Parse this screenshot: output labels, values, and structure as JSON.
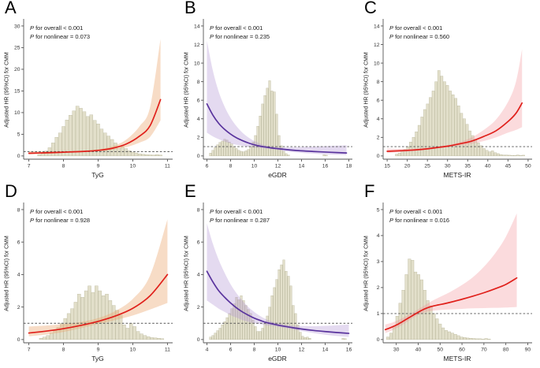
{
  "figure": {
    "background": "#ffffff"
  },
  "chart_data": [
    {
      "type": "line",
      "label": "A",
      "p_overall": "P for overall < 0.001",
      "p_nonlinear": "P for nonlinear = 0.073",
      "xlabel": "TyG",
      "ylabel": "Adjusted HR (95%CI) for CMM",
      "xlim": [
        6.85,
        11.15
      ],
      "ylim": [
        0,
        30
      ],
      "xticks": [
        7,
        8,
        9,
        10,
        11
      ],
      "yticks": [
        0,
        5,
        10,
        15,
        20,
        25,
        30
      ],
      "ref_line_y": 1,
      "legend_position": "none",
      "grid": false,
      "colors": {
        "line": "#e0201b",
        "band": "#eba770",
        "band_opacity": 0.4,
        "hist_fill": "#e2dfca",
        "hist_stroke": "#b5b295"
      },
      "curve": {
        "x": [
          7.0,
          7.4,
          7.8,
          8.2,
          8.6,
          9.0,
          9.4,
          9.8,
          10.2,
          10.5,
          10.8
        ],
        "y": [
          0.62,
          0.7,
          0.8,
          0.92,
          1.05,
          1.28,
          1.75,
          2.7,
          4.6,
          7.0,
          13.0
        ],
        "lo": [
          0.33,
          0.45,
          0.6,
          0.76,
          0.9,
          1.08,
          1.42,
          2.0,
          3.1,
          4.4,
          8.2
        ],
        "hi": [
          1.1,
          1.06,
          1.06,
          1.12,
          1.24,
          1.52,
          2.2,
          3.7,
          6.9,
          11.3,
          27.0
        ]
      },
      "histogram": {
        "x0": 7.25,
        "bin_width": 0.1,
        "heights": [
          0.3,
          0.6,
          1.1,
          1.9,
          3.0,
          4.3,
          5.3,
          6.8,
          8.3,
          9.4,
          10.4,
          11.5,
          11.0,
          10.2,
          9.1,
          9.5,
          8.2,
          7.4,
          6.2,
          5.3,
          4.6,
          3.8,
          3.0,
          1.7,
          2.2,
          1.7,
          1.2,
          0.9,
          0.7,
          0.5,
          0.4,
          0.3,
          0.25,
          0.2,
          0.3,
          0.2
        ]
      }
    },
    {
      "type": "line",
      "label": "B",
      "p_overall": "P for overall < 0.001",
      "p_nonlinear": "P for nonlinear = 0.235",
      "xlabel": "eGDR",
      "ylabel": "Adjusted HR (95%CI) for CMM",
      "xlim": [
        5.7,
        18.3
      ],
      "ylim": [
        0,
        14
      ],
      "xticks": [
        6,
        8,
        10,
        12,
        14,
        16,
        18
      ],
      "yticks": [
        0,
        2,
        4,
        6,
        8,
        10,
        12,
        14
      ],
      "ref_line_y": 1,
      "legend_position": "none",
      "grid": false,
      "colors": {
        "line": "#59339d",
        "band": "#b295d4",
        "band_opacity": 0.35,
        "hist_fill": "#e2dfca",
        "hist_stroke": "#b5b295"
      },
      "curve": {
        "x": [
          6.0,
          6.5,
          7.0,
          7.5,
          8.0,
          8.5,
          9.0,
          9.5,
          10.0,
          10.5,
          11.0,
          11.5,
          12.0,
          13.0,
          14.0,
          15.0,
          16.0,
          17.0,
          17.8
        ],
        "y": [
          5.6,
          4.4,
          3.5,
          2.85,
          2.35,
          1.95,
          1.65,
          1.4,
          1.2,
          1.05,
          0.95,
          0.85,
          0.78,
          0.65,
          0.55,
          0.48,
          0.42,
          0.36,
          0.32
        ],
        "lo": [
          2.5,
          2.1,
          1.8,
          1.55,
          1.35,
          1.2,
          1.1,
          1.0,
          0.92,
          0.85,
          0.79,
          0.72,
          0.64,
          0.45,
          0.33,
          0.24,
          0.17,
          0.12,
          0.09
        ],
        "hi": [
          12.4,
          9.2,
          6.9,
          5.3,
          4.1,
          3.2,
          2.5,
          2.0,
          1.62,
          1.32,
          1.12,
          1.0,
          0.95,
          0.92,
          0.95,
          1.0,
          1.05,
          1.1,
          1.15
        ]
      },
      "histogram": {
        "x0": 6.2,
        "bin_width": 0.2,
        "heights": [
          0.3,
          0.6,
          0.9,
          1.2,
          1.45,
          1.6,
          1.8,
          1.7,
          1.5,
          1.3,
          1.0,
          0.8,
          0.6,
          0.5,
          0.45,
          0.55,
          0.7,
          1.0,
          1.5,
          2.2,
          3.2,
          4.3,
          5.6,
          6.5,
          7.3,
          8.1,
          7.0,
          6.9,
          4.5,
          2.2,
          1.1,
          0.5,
          0.25,
          0.1,
          0,
          0,
          0,
          0,
          0,
          0,
          0,
          0,
          0,
          0,
          0,
          0,
          0,
          0,
          0.12,
          0.08
        ]
      }
    },
    {
      "type": "line",
      "label": "C",
      "p_overall": "P for overall < 0.001",
      "p_nonlinear": "P for nonlinear = 0.560",
      "xlabel": "METS-IR",
      "ylabel": "Adjusted HR (95%CI) for CMM",
      "xlim": [
        14,
        51
      ],
      "ylim": [
        0,
        14
      ],
      "xticks": [
        15,
        20,
        25,
        30,
        35,
        40,
        45,
        50
      ],
      "yticks": [
        0,
        2,
        4,
        6,
        8,
        10,
        12,
        14
      ],
      "ref_line_y": 1,
      "legend_position": "none",
      "grid": false,
      "colors": {
        "line": "#e0201b",
        "band": "#f39298",
        "band_opacity": 0.33,
        "hist_fill": "#e2dfca",
        "hist_stroke": "#b5b295"
      },
      "curve": {
        "x": [
          15,
          18,
          21,
          24,
          27,
          30,
          33,
          36,
          39,
          42,
          45,
          47,
          48.5
        ],
        "y": [
          0.5,
          0.55,
          0.62,
          0.72,
          0.88,
          1.05,
          1.3,
          1.6,
          2.1,
          2.7,
          3.7,
          4.6,
          5.7
        ],
        "lo": [
          0.3,
          0.4,
          0.5,
          0.62,
          0.78,
          0.95,
          1.1,
          1.3,
          1.6,
          2.0,
          2.5,
          2.8,
          3.1
        ],
        "hi": [
          0.8,
          0.75,
          0.78,
          0.85,
          1.0,
          1.18,
          1.5,
          2.0,
          2.8,
          3.9,
          5.8,
          8.0,
          11.5
        ]
      },
      "histogram": {
        "x0": 17.0,
        "bin_width": 0.7,
        "heights": [
          0.2,
          0.3,
          0.5,
          0.7,
          1.0,
          1.5,
          2.0,
          2.6,
          3.3,
          4.2,
          5.0,
          5.6,
          6.3,
          7.0,
          8.0,
          9.2,
          8.6,
          8.0,
          7.6,
          7.0,
          6.6,
          6.2,
          5.4,
          4.6,
          4.0,
          3.4,
          2.7,
          2.2,
          1.8,
          1.4,
          1.1,
          0.8,
          0.6,
          0.45,
          0.55,
          0.35,
          0.25,
          0.15,
          0.1,
          0.1,
          0.08,
          0.06,
          0.05,
          0.1,
          0.05,
          0.08
        ]
      }
    },
    {
      "type": "line",
      "label": "D",
      "p_overall": "P for overall < 0.001",
      "p_nonlinear": "P for nonlinear = 0.928",
      "xlabel": "TyG",
      "ylabel": "Adjusted HR (95%CI) for CMM",
      "xlim": [
        6.85,
        11.15
      ],
      "ylim": [
        0,
        8
      ],
      "xticks": [
        7,
        8,
        9,
        10,
        11
      ],
      "yticks": [
        0,
        2,
        4,
        6,
        8
      ],
      "ref_line_y": 1,
      "legend_position": "none",
      "grid": false,
      "colors": {
        "line": "#e0201b",
        "band": "#eba770",
        "band_opacity": 0.4,
        "hist_fill": "#e2dfca",
        "hist_stroke": "#b5b295"
      },
      "curve": {
        "x": [
          7.0,
          7.5,
          8.0,
          8.5,
          9.0,
          9.5,
          10.0,
          10.5,
          11.0
        ],
        "y": [
          0.4,
          0.52,
          0.67,
          0.87,
          1.12,
          1.45,
          1.92,
          2.7,
          4.0
        ],
        "lo": [
          0.2,
          0.31,
          0.47,
          0.7,
          0.96,
          1.2,
          1.48,
          1.85,
          2.25
        ],
        "hi": [
          0.8,
          0.86,
          0.95,
          1.08,
          1.32,
          1.76,
          2.5,
          3.95,
          7.4
        ]
      },
      "histogram": {
        "x0": 7.3,
        "bin_width": 0.1,
        "heights": [
          0.08,
          0.15,
          0.25,
          0.4,
          0.55,
          0.75,
          1.0,
          1.3,
          1.6,
          1.9,
          2.3,
          2.8,
          2.6,
          3.0,
          3.3,
          2.9,
          3.3,
          3.0,
          2.7,
          2.8,
          2.4,
          2.1,
          1.8,
          1.5,
          0.9,
          0.7,
          1.0,
          0.8,
          0.5,
          0.35,
          0.25,
          0.18,
          0.12,
          0.1,
          0.08,
          0.05
        ]
      }
    },
    {
      "type": "line",
      "label": "E",
      "p_overall": "P for overall < 0.001",
      "p_nonlinear": "P for nonlinear = 0.287",
      "xlabel": "eGDR",
      "ylabel": "Adjusted HR (95%CI) for CMM",
      "xlim": [
        3.7,
        16.3
      ],
      "ylim": [
        0,
        8
      ],
      "xticks": [
        4,
        6,
        8,
        10,
        12,
        14,
        16
      ],
      "yticks": [
        0,
        2,
        4,
        6,
        8
      ],
      "ref_line_y": 1,
      "legend_position": "none",
      "grid": false,
      "colors": {
        "line": "#59339d",
        "band": "#b295d4",
        "band_opacity": 0.35,
        "hist_fill": "#e2dfca",
        "hist_stroke": "#b5b295"
      },
      "curve": {
        "x": [
          4.0,
          4.5,
          5.0,
          5.5,
          6.0,
          6.5,
          7.0,
          7.5,
          8.0,
          8.5,
          9.0,
          9.5,
          10.0,
          10.5,
          11.0,
          12.0,
          13.0,
          14.0,
          15.0,
          16.0
        ],
        "y": [
          4.2,
          3.55,
          3.0,
          2.6,
          2.25,
          1.95,
          1.7,
          1.5,
          1.32,
          1.18,
          1.05,
          0.97,
          0.89,
          0.82,
          0.76,
          0.65,
          0.56,
          0.49,
          0.43,
          0.38
        ],
        "lo": [
          2.4,
          2.15,
          1.9,
          1.7,
          1.5,
          1.35,
          1.2,
          1.1,
          1.0,
          0.95,
          0.88,
          0.84,
          0.78,
          0.72,
          0.66,
          0.52,
          0.4,
          0.3,
          0.22,
          0.16
        ],
        "hi": [
          7.15,
          5.9,
          4.9,
          4.1,
          3.4,
          2.85,
          2.4,
          2.0,
          1.7,
          1.45,
          1.25,
          1.1,
          1.0,
          0.93,
          0.88,
          0.83,
          0.82,
          0.84,
          0.88,
          0.93
        ]
      },
      "histogram": {
        "x0": 4.2,
        "bin_width": 0.2,
        "heights": [
          0.15,
          0.25,
          0.4,
          0.55,
          0.7,
          0.9,
          1.1,
          1.35,
          1.6,
          1.9,
          2.2,
          2.6,
          2.45,
          2.7,
          2.4,
          2.1,
          1.85,
          1.6,
          1.2,
          0.8,
          0.5,
          0.5,
          0.7,
          1.0,
          1.45,
          2.0,
          2.7,
          3.2,
          3.7,
          4.3,
          4.6,
          4.9,
          4.2,
          3.9,
          3.3,
          2.1,
          1.6,
          0.9,
          0.45,
          0.2,
          0.12,
          0.15,
          0.08,
          0,
          0,
          0,
          0,
          0,
          0,
          0,
          0,
          0,
          0,
          0,
          0,
          0,
          0.07,
          0.05
        ]
      }
    },
    {
      "type": "line",
      "label": "F",
      "p_overall": "P for overall < 0.001",
      "p_nonlinear": "P for nonlinear = 0.016",
      "xlabel": "METS-IR",
      "ylabel": "Adjusted HR (95%CI) for CMM",
      "xlim": [
        24,
        92
      ],
      "ylim": [
        0,
        5
      ],
      "xticks": [
        30,
        40,
        50,
        60,
        70,
        80,
        90
      ],
      "yticks": [
        0,
        1,
        2,
        3,
        4,
        5
      ],
      "ref_line_y": 1,
      "legend_position": "none",
      "grid": false,
      "colors": {
        "line": "#e0201b",
        "band": "#f39298",
        "band_opacity": 0.33,
        "hist_fill": "#e2dfca",
        "hist_stroke": "#b5b295"
      },
      "curve": {
        "x": [
          25,
          28,
          31,
          34,
          37,
          40,
          43,
          46,
          49,
          52,
          55,
          60,
          65,
          70,
          75,
          80,
          85
        ],
        "y": [
          0.38,
          0.48,
          0.6,
          0.75,
          0.9,
          1.05,
          1.18,
          1.27,
          1.33,
          1.38,
          1.44,
          1.55,
          1.67,
          1.8,
          1.95,
          2.12,
          2.37
        ],
        "lo": [
          0.25,
          0.35,
          0.48,
          0.63,
          0.8,
          0.95,
          1.05,
          1.1,
          1.13,
          1.15,
          1.16,
          1.18,
          1.2,
          1.21,
          1.22,
          1.23,
          1.25
        ],
        "hi": [
          0.58,
          0.65,
          0.75,
          0.88,
          1.02,
          1.16,
          1.32,
          1.47,
          1.6,
          1.72,
          1.85,
          2.1,
          2.4,
          2.8,
          3.3,
          3.95,
          4.85
        ]
      },
      "histogram": {
        "x0": 25.5,
        "bin_width": 1.4,
        "heights": [
          0.1,
          0.25,
          0.5,
          0.9,
          1.4,
          1.9,
          2.5,
          3.1,
          3.05,
          2.6,
          2.5,
          2.3,
          1.9,
          1.5,
          1.3,
          1.0,
          0.8,
          0.6,
          0.45,
          0.35,
          0.3,
          0.25,
          0.2,
          0.15,
          0.1,
          0.08,
          0.06,
          0.05,
          0.04,
          0.03,
          0.03,
          0.02,
          0.04,
          0.02
        ]
      }
    }
  ]
}
